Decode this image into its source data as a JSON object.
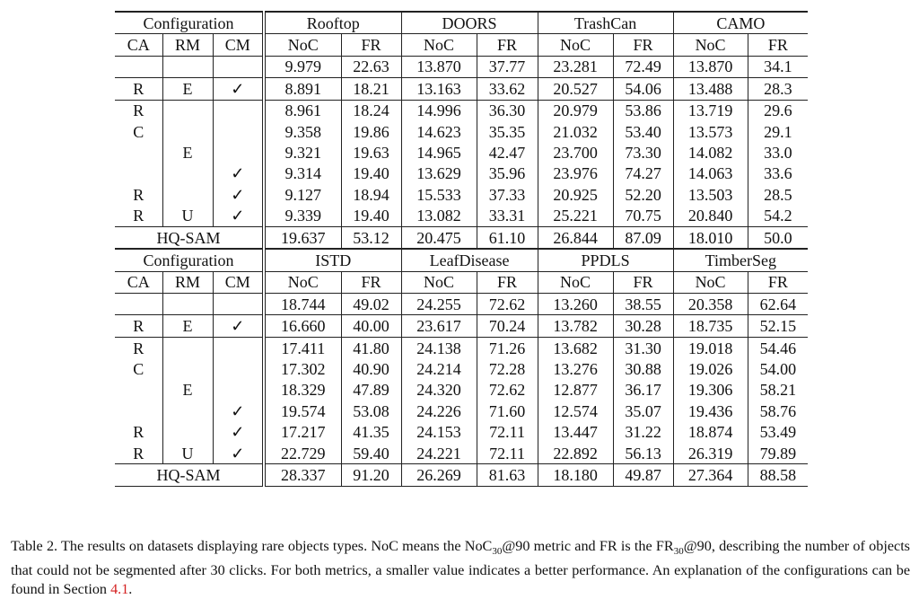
{
  "blocks": [
    {
      "config_header": "Configuration",
      "datasets": [
        "Rooftop",
        "DOORS",
        "TrashCan",
        "CAMO"
      ],
      "sub_headers": [
        "CA",
        "RM",
        "CM",
        "NoC",
        "FR",
        "NoC",
        "FR",
        "NoC",
        "FR",
        "NoC",
        "FR"
      ],
      "rows": [
        [
          "",
          "",
          "",
          "9.979",
          "22.63",
          "13.870",
          "37.77",
          "23.281",
          "72.49",
          "13.870",
          "34.1"
        ],
        [
          "R",
          "E",
          "✓",
          "8.891",
          "18.21",
          "13.163",
          "33.62",
          "20.527",
          "54.06",
          "13.488",
          "28.3"
        ],
        [
          "R",
          "",
          "",
          "8.961",
          "18.24",
          "14.996",
          "36.30",
          "20.979",
          "53.86",
          "13.719",
          "29.6"
        ],
        [
          "C",
          "",
          "",
          "9.358",
          "19.86",
          "14.623",
          "35.35",
          "21.032",
          "53.40",
          "13.573",
          "29.1"
        ],
        [
          "",
          "E",
          "",
          "9.321",
          "19.63",
          "14.965",
          "42.47",
          "23.700",
          "73.30",
          "14.082",
          "33.0"
        ],
        [
          "",
          "",
          "✓",
          "9.314",
          "19.40",
          "13.629",
          "35.96",
          "23.976",
          "74.27",
          "14.063",
          "33.6"
        ],
        [
          "R",
          "",
          "✓",
          "9.127",
          "18.94",
          "15.533",
          "37.33",
          "20.925",
          "52.20",
          "13.503",
          "28.5"
        ],
        [
          "R",
          "U",
          "✓",
          "9.339",
          "19.40",
          "13.082",
          "33.31",
          "25.221",
          "70.75",
          "20.840",
          "54.2"
        ]
      ],
      "hq_row": [
        "HQ-SAM",
        "19.637",
        "53.12",
        "20.475",
        "61.10",
        "26.844",
        "87.09",
        "18.010",
        "50.0"
      ]
    },
    {
      "config_header": "Configuration",
      "datasets": [
        "ISTD",
        "LeafDisease",
        "PPDLS",
        "TimberSeg"
      ],
      "sub_headers": [
        "CA",
        "RM",
        "CM",
        "NoC",
        "FR",
        "NoC",
        "FR",
        "NoC",
        "FR",
        "NoC",
        "FR"
      ],
      "rows": [
        [
          "",
          "",
          "",
          "18.744",
          "49.02",
          "24.255",
          "72.62",
          "13.260",
          "38.55",
          "20.358",
          "62.64"
        ],
        [
          "R",
          "E",
          "✓",
          "16.660",
          "40.00",
          "23.617",
          "70.24",
          "13.782",
          "30.28",
          "18.735",
          "52.15"
        ],
        [
          "R",
          "",
          "",
          "17.411",
          "41.80",
          "24.138",
          "71.26",
          "13.682",
          "31.30",
          "19.018",
          "54.46"
        ],
        [
          "C",
          "",
          "",
          "17.302",
          "40.90",
          "24.214",
          "72.28",
          "13.276",
          "30.88",
          "19.026",
          "54.00"
        ],
        [
          "",
          "E",
          "",
          "18.329",
          "47.89",
          "24.320",
          "72.62",
          "12.877",
          "36.17",
          "19.306",
          "58.21"
        ],
        [
          "",
          "",
          "✓",
          "19.574",
          "53.08",
          "24.226",
          "71.60",
          "12.574",
          "35.07",
          "19.436",
          "58.76"
        ],
        [
          "R",
          "",
          "✓",
          "17.217",
          "41.35",
          "24.153",
          "72.11",
          "13.447",
          "31.22",
          "18.874",
          "53.49"
        ],
        [
          "R",
          "U",
          "✓",
          "22.729",
          "59.40",
          "24.221",
          "72.11",
          "22.892",
          "56.13",
          "26.319",
          "79.89"
        ]
      ],
      "hq_row": [
        "HQ-SAM",
        "28.337",
        "91.20",
        "26.269",
        "81.63",
        "18.180",
        "49.87",
        "27.364",
        "88.58"
      ]
    }
  ],
  "caption": {
    "label": "Table 2.",
    "text1": "The results on datasets displaying rare objects types. NoC means the NoC",
    "sub1": "30",
    "text2": "@90 metric and FR is the FR",
    "sub2": "30",
    "text3": "@90, describing the number of objects that could not be segmented after 30 clicks. For both metrics, a smaller value indicates a better performance. An explanation of the configurations can be found in Section ",
    "link": "4.1",
    "text4": "."
  },
  "colors": {
    "link": "#d42020",
    "text": "#111111"
  }
}
